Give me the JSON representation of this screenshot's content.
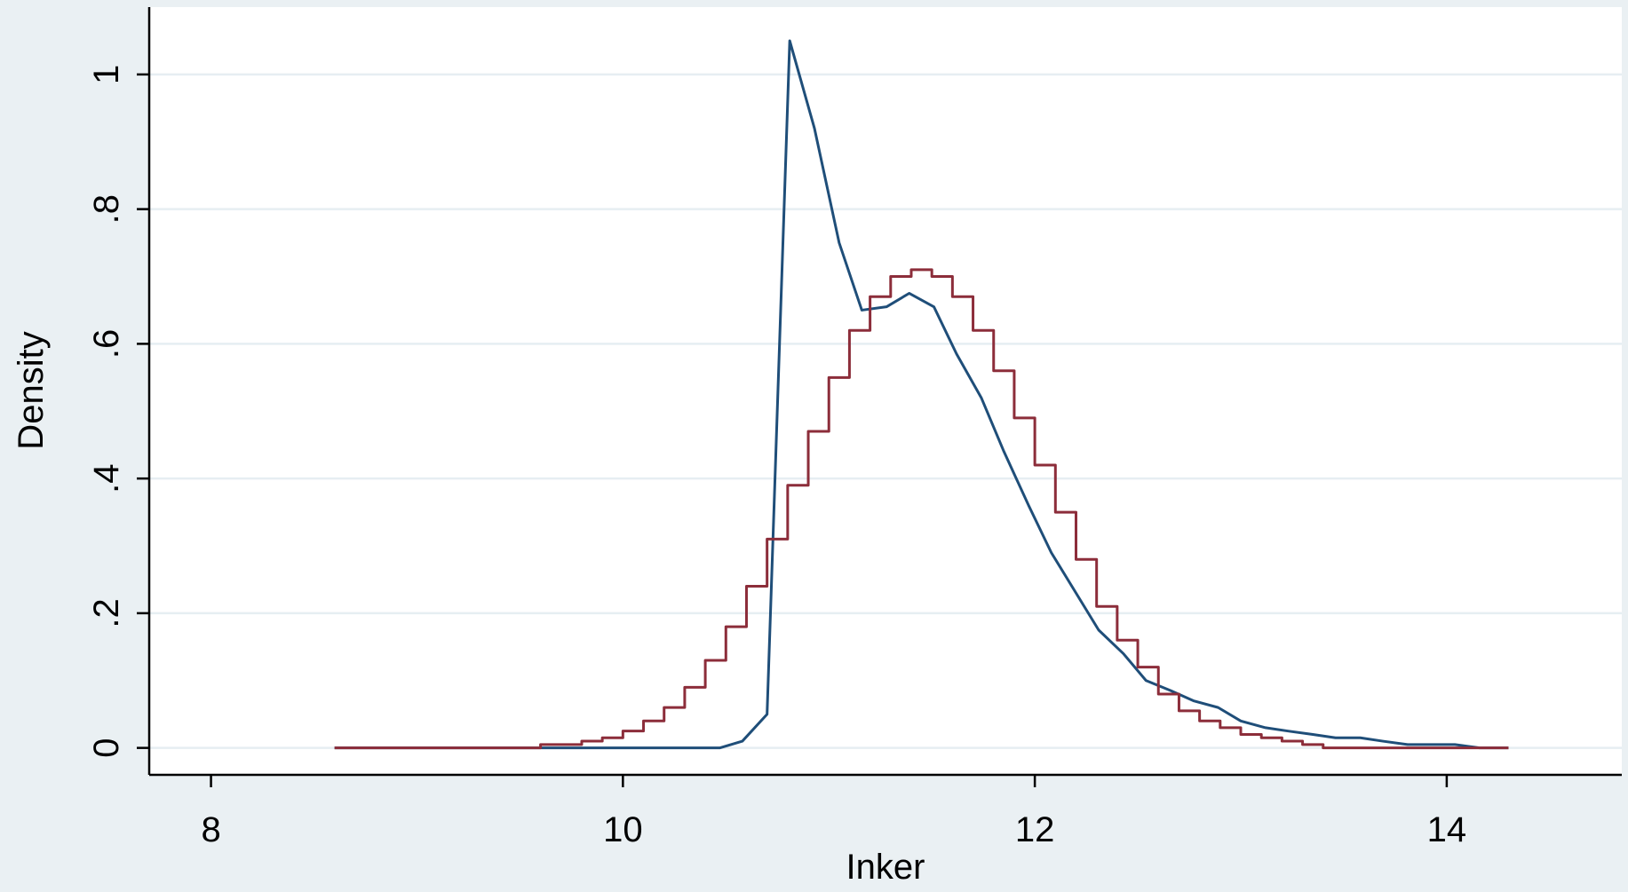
{
  "chart_data": {
    "type": "line",
    "title": "",
    "xlabel": "Inker",
    "ylabel": "Density",
    "xlim": [
      7.7,
      14.85
    ],
    "ylim": [
      -0.04,
      1.1
    ],
    "x_ticks": [
      8,
      10,
      12,
      14
    ],
    "x_tick_labels": [
      "8",
      "10",
      "12",
      "14"
    ],
    "y_ticks": [
      0,
      0.2,
      0.4,
      0.6,
      0.8,
      1
    ],
    "y_tick_labels": [
      "0",
      ".2",
      ".4",
      ".6",
      ".8",
      "1"
    ],
    "grid": true,
    "legend": "none",
    "colors": {
      "background_outer": "#eaf0f3",
      "plot_area": "#ffffff",
      "grid": "#e6eef2",
      "series_1": "#1f4e79",
      "series_2": "#8c2d3a"
    },
    "series": [
      {
        "color": "#1f4e79",
        "style": "line",
        "x": [
          8.6,
          9.6,
          10.47,
          10.58,
          10.7,
          10.81,
          10.93,
          11.05,
          11.16,
          11.28,
          11.39,
          11.51,
          11.62,
          11.74,
          11.85,
          11.97,
          12.08,
          12.2,
          12.31,
          12.43,
          12.54,
          12.66,
          12.77,
          12.89,
          13.0,
          13.12,
          13.23,
          13.35,
          13.46,
          13.58,
          13.69,
          13.81,
          13.93,
          14.04,
          14.16,
          14.3
        ],
        "y": [
          0,
          0,
          0,
          0.01,
          0.05,
          1.05,
          0.92,
          0.75,
          0.65,
          0.655,
          0.675,
          0.655,
          0.585,
          0.52,
          0.44,
          0.36,
          0.29,
          0.23,
          0.175,
          0.14,
          0.1,
          0.085,
          0.07,
          0.06,
          0.04,
          0.03,
          0.025,
          0.02,
          0.015,
          0.015,
          0.01,
          0.005,
          0.005,
          0.005,
          0.0,
          0.0
        ]
      },
      {
        "color": "#8c2d3a",
        "style": "step",
        "x": [
          8.6,
          9.55,
          9.6,
          9.7,
          9.8,
          9.9,
          10.0,
          10.1,
          10.2,
          10.3,
          10.4,
          10.5,
          10.6,
          10.7,
          10.8,
          10.9,
          11.0,
          11.1,
          11.2,
          11.3,
          11.4,
          11.5,
          11.6,
          11.7,
          11.8,
          11.9,
          12.0,
          12.1,
          12.2,
          12.3,
          12.4,
          12.5,
          12.6,
          12.7,
          12.8,
          12.9,
          13.0,
          13.1,
          13.2,
          13.3,
          13.4,
          13.6,
          14.3
        ],
        "y": [
          0,
          0,
          0.005,
          0.005,
          0.01,
          0.015,
          0.025,
          0.04,
          0.06,
          0.09,
          0.13,
          0.18,
          0.24,
          0.31,
          0.39,
          0.47,
          0.55,
          0.62,
          0.67,
          0.7,
          0.71,
          0.7,
          0.67,
          0.62,
          0.56,
          0.49,
          0.42,
          0.35,
          0.28,
          0.21,
          0.16,
          0.12,
          0.08,
          0.055,
          0.04,
          0.03,
          0.02,
          0.015,
          0.01,
          0.005,
          0.0,
          0.0,
          0.0
        ]
      }
    ]
  }
}
